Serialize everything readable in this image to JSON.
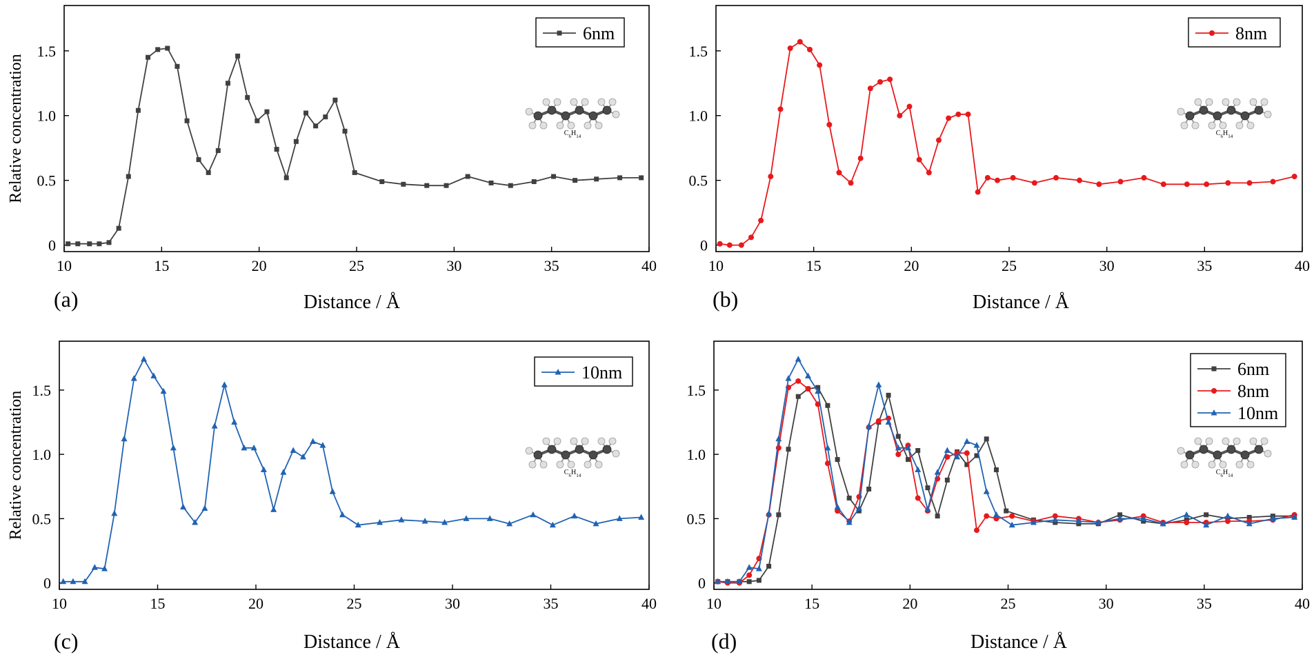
{
  "chart_data": [
    {
      "panel": "a",
      "type": "line",
      "panel_label": "(a)",
      "xlabel": "Distance / Å",
      "ylabel": "Relative concentration",
      "xlim": [
        10,
        40
      ],
      "ylim": [
        -0.05,
        1.85
      ],
      "xticks": [
        10,
        15,
        20,
        25,
        30,
        35,
        40
      ],
      "yticks": [
        0,
        0.5,
        1.0,
        1.5
      ],
      "ytick_labels": [
        "0",
        "0.5",
        "1.0",
        "1.5"
      ],
      "legend_position": "top-right",
      "annotation": "C6H14",
      "series": [
        {
          "name": "6nm",
          "color": "#404040",
          "marker": "square",
          "x": [
            10.2,
            10.7,
            11.3,
            11.8,
            12.3,
            12.8,
            13.3,
            13.8,
            14.3,
            14.8,
            15.3,
            15.8,
            16.3,
            16.9,
            17.4,
            17.9,
            18.4,
            18.9,
            19.4,
            19.9,
            20.4,
            20.9,
            21.4,
            21.9,
            22.4,
            22.9,
            23.4,
            23.9,
            24.4,
            24.9,
            26.3,
            27.4,
            28.6,
            29.6,
            30.7,
            31.9,
            32.9,
            34.1,
            35.1,
            36.2,
            37.3,
            38.5,
            39.6
          ],
          "values": [
            0.01,
            0.01,
            0.01,
            0.01,
            0.02,
            0.13,
            0.53,
            1.04,
            1.45,
            1.51,
            1.52,
            1.38,
            0.96,
            0.66,
            0.56,
            0.73,
            1.25,
            1.46,
            1.14,
            0.96,
            1.03,
            0.74,
            0.52,
            0.8,
            1.02,
            0.92,
            0.99,
            1.12,
            0.88,
            0.56,
            0.49,
            0.47,
            0.46,
            0.46,
            0.53,
            0.48,
            0.46,
            0.49,
            0.53,
            0.5,
            0.51,
            0.52,
            0.52
          ]
        }
      ]
    },
    {
      "panel": "b",
      "type": "line",
      "panel_label": "(b)",
      "xlabel": "Distance / Å",
      "ylabel": "",
      "xlim": [
        10,
        40
      ],
      "ylim": [
        -0.05,
        1.85
      ],
      "xticks": [
        10,
        15,
        20,
        25,
        30,
        35,
        40
      ],
      "yticks": [
        0,
        0.5,
        1.0,
        1.5
      ],
      "ytick_labels": [
        "0",
        "0.5",
        "1.0",
        "1.5"
      ],
      "legend_position": "top-right",
      "annotation": "C6H14",
      "series": [
        {
          "name": "8nm",
          "color": "#e8191c",
          "marker": "circle",
          "x": [
            10.2,
            10.7,
            11.3,
            11.8,
            12.3,
            12.8,
            13.3,
            13.8,
            14.3,
            14.8,
            15.3,
            15.8,
            16.3,
            16.9,
            17.4,
            17.9,
            18.4,
            18.9,
            19.4,
            19.9,
            20.4,
            20.9,
            21.4,
            21.9,
            22.4,
            22.9,
            23.4,
            23.9,
            24.4,
            25.2,
            26.3,
            27.4,
            28.6,
            29.6,
            30.7,
            31.9,
            32.9,
            34.1,
            35.1,
            36.2,
            37.3,
            38.5,
            39.6
          ],
          "values": [
            0.01,
            0.0,
            0.0,
            0.06,
            0.19,
            0.53,
            1.05,
            1.52,
            1.57,
            1.51,
            1.39,
            0.93,
            0.56,
            0.48,
            0.67,
            1.21,
            1.26,
            1.28,
            1.0,
            1.07,
            0.66,
            0.56,
            0.81,
            0.98,
            1.01,
            1.01,
            0.41,
            0.52,
            0.5,
            0.52,
            0.48,
            0.52,
            0.5,
            0.47,
            0.49,
            0.52,
            0.47,
            0.47,
            0.47,
            0.48,
            0.48,
            0.49,
            0.53
          ]
        }
      ]
    },
    {
      "panel": "c",
      "type": "line",
      "panel_label": "(c)",
      "xlabel": "Distance / Å",
      "ylabel": "Relative concentration",
      "xlim": [
        10,
        40
      ],
      "ylim": [
        -0.05,
        1.88
      ],
      "xticks": [
        10,
        15,
        20,
        25,
        30,
        35,
        40
      ],
      "yticks": [
        0,
        0.5,
        1.0,
        1.5
      ],
      "ytick_labels": [
        "0",
        "0.5",
        "1.0",
        "1.5"
      ],
      "legend_position": "top-right",
      "annotation": "C6H14",
      "series": [
        {
          "name": "10nm",
          "color": "#2063b3",
          "marker": "triangle",
          "x": [
            10.2,
            10.7,
            11.3,
            11.8,
            12.3,
            12.8,
            13.3,
            13.8,
            14.3,
            14.8,
            15.3,
            15.8,
            16.3,
            16.9,
            17.4,
            17.9,
            18.4,
            18.9,
            19.4,
            19.9,
            20.4,
            20.9,
            21.4,
            21.9,
            22.4,
            22.9,
            23.4,
            23.9,
            24.4,
            25.2,
            26.3,
            27.4,
            28.6,
            29.6,
            30.7,
            31.9,
            32.9,
            34.1,
            35.1,
            36.2,
            37.3,
            38.5,
            39.6
          ],
          "values": [
            0.01,
            0.01,
            0.01,
            0.12,
            0.11,
            0.54,
            1.12,
            1.59,
            1.74,
            1.61,
            1.49,
            1.05,
            0.59,
            0.47,
            0.58,
            1.22,
            1.54,
            1.25,
            1.05,
            1.05,
            0.88,
            0.57,
            0.86,
            1.03,
            0.98,
            1.1,
            1.07,
            0.71,
            0.53,
            0.45,
            0.47,
            0.49,
            0.48,
            0.47,
            0.5,
            0.5,
            0.46,
            0.53,
            0.45,
            0.52,
            0.46,
            0.5,
            0.51
          ]
        }
      ]
    },
    {
      "panel": "d",
      "type": "line",
      "panel_label": "(d)",
      "xlabel": "Distance / Å",
      "ylabel": "",
      "xlim": [
        10,
        40
      ],
      "ylim": [
        -0.05,
        1.88
      ],
      "xticks": [
        10,
        15,
        20,
        25,
        30,
        35,
        40
      ],
      "yticks": [
        0,
        0.5,
        1.0,
        1.5
      ],
      "ytick_labels": [
        "0",
        "0.5",
        "1.0",
        "1.5"
      ],
      "legend_position": "top-right",
      "annotation": "C6H14",
      "series": [
        {
          "name": "6nm",
          "color": "#404040",
          "marker": "square",
          "x": [
            10.2,
            10.7,
            11.3,
            11.8,
            12.3,
            12.8,
            13.3,
            13.8,
            14.3,
            14.8,
            15.3,
            15.8,
            16.3,
            16.9,
            17.4,
            17.9,
            18.4,
            18.9,
            19.4,
            19.9,
            20.4,
            20.9,
            21.4,
            21.9,
            22.4,
            22.9,
            23.4,
            23.9,
            24.4,
            24.9,
            26.3,
            27.4,
            28.6,
            29.6,
            30.7,
            31.9,
            32.9,
            34.1,
            35.1,
            36.2,
            37.3,
            38.5,
            39.6
          ],
          "values": [
            0.01,
            0.01,
            0.01,
            0.01,
            0.02,
            0.13,
            0.53,
            1.04,
            1.45,
            1.51,
            1.52,
            1.38,
            0.96,
            0.66,
            0.56,
            0.73,
            1.25,
            1.46,
            1.14,
            0.96,
            1.03,
            0.74,
            0.52,
            0.8,
            1.02,
            0.92,
            0.99,
            1.12,
            0.88,
            0.56,
            0.49,
            0.47,
            0.46,
            0.46,
            0.53,
            0.48,
            0.46,
            0.49,
            0.53,
            0.5,
            0.51,
            0.52,
            0.52
          ]
        },
        {
          "name": "8nm",
          "color": "#e8191c",
          "marker": "circle",
          "x": [
            10.2,
            10.7,
            11.3,
            11.8,
            12.3,
            12.8,
            13.3,
            13.8,
            14.3,
            14.8,
            15.3,
            15.8,
            16.3,
            16.9,
            17.4,
            17.9,
            18.4,
            18.9,
            19.4,
            19.9,
            20.4,
            20.9,
            21.4,
            21.9,
            22.4,
            22.9,
            23.4,
            23.9,
            24.4,
            25.2,
            26.3,
            27.4,
            28.6,
            29.6,
            30.7,
            31.9,
            32.9,
            34.1,
            35.1,
            36.2,
            37.3,
            38.5,
            39.6
          ],
          "values": [
            0.01,
            0.0,
            0.0,
            0.06,
            0.19,
            0.53,
            1.05,
            1.52,
            1.57,
            1.51,
            1.39,
            0.93,
            0.56,
            0.48,
            0.67,
            1.21,
            1.26,
            1.28,
            1.0,
            1.07,
            0.66,
            0.56,
            0.81,
            0.98,
            1.01,
            1.01,
            0.41,
            0.52,
            0.5,
            0.52,
            0.48,
            0.52,
            0.5,
            0.47,
            0.49,
            0.52,
            0.47,
            0.47,
            0.47,
            0.48,
            0.48,
            0.49,
            0.53
          ]
        },
        {
          "name": "10nm",
          "color": "#2063b3",
          "marker": "triangle",
          "x": [
            10.2,
            10.7,
            11.3,
            11.8,
            12.3,
            12.8,
            13.3,
            13.8,
            14.3,
            14.8,
            15.3,
            15.8,
            16.3,
            16.9,
            17.4,
            17.9,
            18.4,
            18.9,
            19.4,
            19.9,
            20.4,
            20.9,
            21.4,
            21.9,
            22.4,
            22.9,
            23.4,
            23.9,
            24.4,
            25.2,
            26.3,
            27.4,
            28.6,
            29.6,
            30.7,
            31.9,
            32.9,
            34.1,
            35.1,
            36.2,
            37.3,
            38.5,
            39.6
          ],
          "values": [
            0.01,
            0.01,
            0.01,
            0.12,
            0.11,
            0.54,
            1.12,
            1.59,
            1.74,
            1.61,
            1.49,
            1.05,
            0.59,
            0.47,
            0.58,
            1.22,
            1.54,
            1.25,
            1.05,
            1.05,
            0.88,
            0.57,
            0.86,
            1.03,
            0.98,
            1.1,
            1.07,
            0.71,
            0.53,
            0.45,
            0.47,
            0.49,
            0.48,
            0.47,
            0.5,
            0.5,
            0.46,
            0.53,
            0.45,
            0.52,
            0.46,
            0.5,
            0.51
          ]
        }
      ]
    }
  ]
}
